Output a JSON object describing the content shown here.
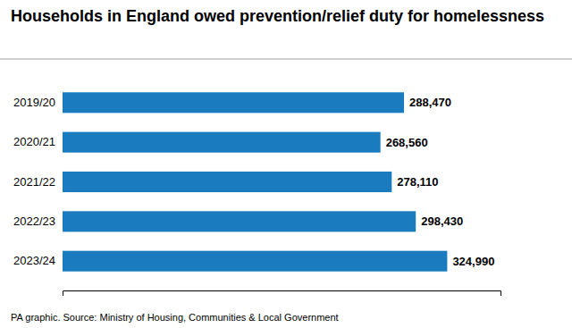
{
  "chart_data": {
    "type": "bar",
    "orientation": "horizontal",
    "title": "Households in England owed prevention/relief duty for homelessness",
    "caption": "PA graphic. Source: Ministry of Housing, Communities & Local Government",
    "categories": [
      "2019/20",
      "2020/21",
      "2021/22",
      "2022/23",
      "2023/24"
    ],
    "values": [
      288470,
      268560,
      278110,
      298430,
      324990
    ],
    "value_labels": [
      "288,470",
      "268,560",
      "278,110",
      "298,430",
      "324,990"
    ],
    "data_labels": true,
    "color": "#1a7bbf",
    "xlim": [
      0,
      370000
    ],
    "xticks": [],
    "tick_labels": "y",
    "grid": false
  }
}
